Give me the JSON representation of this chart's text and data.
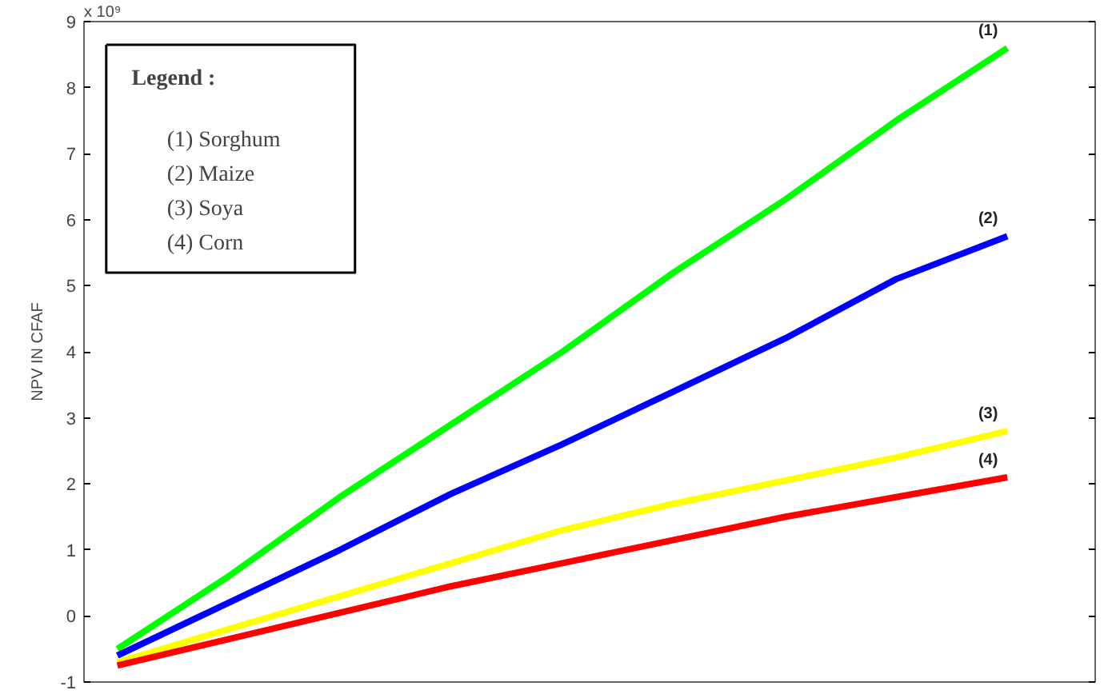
{
  "chart_data": {
    "type": "line",
    "ylabel": "NPV IN CFAF",
    "grid": false,
    "line_style": "solid",
    "categories": [
      null,
      null,
      null,
      null,
      null,
      null,
      null,
      null,
      null
    ],
    "ylim": [
      -1,
      9
    ],
    "yticks": [
      -1,
      0,
      1,
      2,
      3,
      4,
      5,
      6,
      7,
      8,
      9
    ],
    "series": [
      {
        "color": "#00ff00",
        "values": [
          -0.5,
          0.6,
          1.8,
          2.9,
          4.0,
          5.2,
          6.3,
          7.5,
          8.6
        ]
      },
      {
        "color": "#0000ff",
        "values": [
          -0.6,
          0.2,
          1.0,
          1.85,
          2.6,
          3.4,
          4.2,
          5.1,
          5.75
        ]
      },
      {
        "color": "#ffff00",
        "values": [
          -0.7,
          -0.2,
          0.3,
          0.8,
          1.3,
          1.7,
          2.05,
          2.4,
          2.8
        ]
      },
      {
        "color": "#ff0000",
        "values": [
          -0.75,
          -0.35,
          0.05,
          0.45,
          0.8,
          1.15,
          1.5,
          1.8,
          2.1
        ]
      }
    ],
    "annotations": [
      "x 10⁹",
      "Legend :",
      "(1)   Sorghum",
      "(2)   Maize",
      "(3)   Soya",
      "(4)   Corn",
      {
        "text": "(1)",
        "y": 8.6
      },
      {
        "text": "(2)",
        "y": 5.75
      },
      {
        "text": "(3)",
        "y": 2.8
      },
      {
        "text": "(4)",
        "y": 2.1
      }
    ]
  }
}
